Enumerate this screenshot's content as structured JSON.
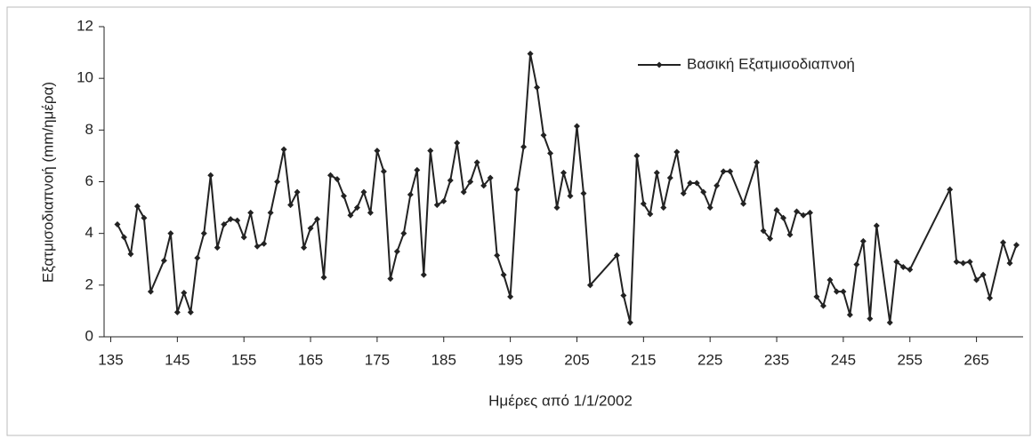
{
  "chart_data": {
    "type": "line",
    "xlabel": "Ημέρες από 1/1/2002",
    "ylabel": "Εξατμισοδιαπνοή (mm/ημέρα)",
    "xlim": [
      134,
      272
    ],
    "xticks": [
      135,
      145,
      155,
      165,
      175,
      185,
      195,
      205,
      215,
      225,
      235,
      245,
      255,
      265
    ],
    "ylim": [
      0,
      12
    ],
    "yticks": [
      0,
      2,
      4,
      6,
      8,
      10,
      12
    ],
    "grid": false,
    "legend": "upper right",
    "series": [
      {
        "name": "Βασική Εξατμισοδιαπνοή",
        "color": "#222222",
        "x": [
          136,
          137,
          138,
          139,
          140,
          141,
          143,
          144,
          145,
          146,
          147,
          148,
          149,
          150,
          151,
          152,
          153,
          154,
          155,
          156,
          157,
          158,
          159,
          160,
          161,
          162,
          163,
          164,
          165,
          166,
          167,
          168,
          169,
          170,
          171,
          172,
          173,
          174,
          175,
          176,
          177,
          178,
          179,
          180,
          181,
          182,
          183,
          184,
          185,
          186,
          187,
          188,
          189,
          190,
          191,
          192,
          193,
          194,
          195,
          196,
          197,
          198,
          199,
          200,
          201,
          202,
          203,
          204,
          205,
          206,
          207,
          211,
          212,
          213,
          214,
          215,
          216,
          217,
          218,
          219,
          220,
          221,
          222,
          223,
          224,
          225,
          226,
          227,
          228,
          230,
          232,
          233,
          234,
          235,
          236,
          237,
          238,
          239,
          240,
          241,
          242,
          243,
          244,
          245,
          246,
          247,
          248,
          249,
          250,
          252,
          253,
          254,
          255,
          261,
          262,
          263,
          264,
          265,
          266,
          267,
          269,
          270,
          271
        ],
        "values": [
          4.35,
          3.85,
          3.2,
          5.05,
          4.6,
          1.75,
          2.95,
          4.0,
          0.95,
          1.7,
          0.95,
          3.05,
          4.0,
          6.25,
          3.45,
          4.35,
          4.55,
          4.5,
          3.85,
          4.8,
          3.5,
          3.6,
          4.8,
          6.0,
          7.25,
          5.1,
          5.6,
          3.45,
          4.2,
          4.55,
          2.3,
          6.25,
          6.1,
          5.45,
          4.7,
          5.0,
          5.6,
          4.8,
          7.2,
          6.4,
          2.25,
          3.3,
          4.0,
          5.5,
          6.45,
          2.4,
          7.2,
          5.1,
          5.25,
          6.05,
          7.5,
          5.6,
          6.0,
          6.75,
          5.85,
          6.15,
          3.15,
          2.4,
          1.55,
          5.7,
          7.35,
          10.95,
          9.65,
          7.8,
          7.1,
          5.0,
          6.35,
          5.45,
          8.15,
          5.55,
          2.0,
          3.15,
          1.6,
          0.55,
          7.0,
          5.15,
          4.75,
          6.35,
          5.0,
          6.15,
          7.15,
          5.55,
          5.95,
          5.95,
          5.6,
          5.0,
          5.85,
          6.4,
          6.4,
          5.15,
          6.75,
          4.1,
          3.8,
          4.9,
          4.6,
          3.95,
          4.85,
          4.7,
          4.8,
          1.55,
          1.2,
          2.2,
          1.75,
          1.75,
          0.85,
          2.8,
          3.7,
          0.7,
          4.3,
          0.55,
          2.9,
          2.7,
          2.6,
          5.7,
          2.9,
          2.85,
          2.9,
          2.2,
          2.4,
          1.5,
          3.65,
          2.85,
          3.55
        ]
      }
    ]
  }
}
